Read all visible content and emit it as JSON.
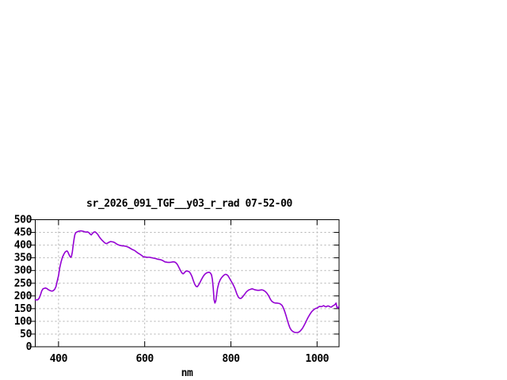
{
  "chart_data": {
    "type": "line",
    "title": "sr_2026_091_TGF__y03_r_rad 07-52-00",
    "xlabel": "nm",
    "ylabel": "",
    "xlim": [
      346,
      1051
    ],
    "ylim": [
      0,
      500
    ],
    "xticks": [
      400,
      600,
      800,
      1000
    ],
    "yticks": [
      0,
      50,
      100,
      150,
      200,
      250,
      300,
      350,
      400,
      450,
      500
    ],
    "grid": true,
    "legend": false,
    "line_color": "#9400d3",
    "grid_color": "#b0b0b0",
    "border_color": "#000000",
    "text_color": "#000000",
    "background_color": "#ffffff",
    "series": [
      {
        "name": "sr_2026_091_TGF__y03_r_rad",
        "x": [
          346,
          349,
          352,
          355,
          358,
          361,
          364,
          367,
          370,
          373,
          376,
          379,
          382,
          385,
          388,
          391,
          394,
          397,
          400,
          403,
          406,
          409,
          412,
          415,
          418,
          420,
          422,
          424,
          426,
          428,
          430,
          432,
          434,
          436,
          438,
          440,
          443,
          446,
          449,
          452,
          455,
          458,
          461,
          464,
          467,
          470,
          473,
          476,
          479,
          482,
          485,
          488,
          491,
          494,
          497,
          500,
          503,
          506,
          509,
          512,
          515,
          518,
          521,
          524,
          527,
          530,
          533,
          536,
          539,
          542,
          545,
          548,
          551,
          554,
          557,
          560,
          563,
          566,
          569,
          572,
          575,
          578,
          581,
          584,
          587,
          590,
          593,
          596,
          599,
          602,
          605,
          608,
          611,
          614,
          617,
          620,
          623,
          626,
          629,
          632,
          635,
          638,
          641,
          644,
          647,
          650,
          653,
          656,
          659,
          662,
          665,
          668,
          671,
          674,
          677,
          680,
          683,
          686,
          689,
          692,
          695,
          698,
          701,
          704,
          707,
          710,
          713,
          716,
          719,
          722,
          725,
          728,
          731,
          734,
          737,
          740,
          743,
          746,
          749,
          752,
          755,
          757,
          759,
          761,
          763,
          765,
          767,
          769,
          772,
          775,
          778,
          781,
          784,
          787,
          790,
          793,
          796,
          799,
          802,
          805,
          808,
          811,
          814,
          817,
          820,
          823,
          826,
          829,
          832,
          835,
          838,
          841,
          844,
          847,
          850,
          853,
          856,
          859,
          862,
          865,
          868,
          871,
          874,
          877,
          880,
          883,
          886,
          889,
          892,
          895,
          898,
          901,
          904,
          907,
          910,
          913,
          916,
          919,
          922,
          925,
          928,
          931,
          934,
          937,
          940,
          943,
          946,
          949,
          952,
          955,
          958,
          961,
          964,
          967,
          970,
          973,
          976,
          979,
          982,
          985,
          988,
          991,
          994,
          997,
          1000,
          1003,
          1006,
          1009,
          1012,
          1015,
          1018,
          1021,
          1024,
          1027,
          1030,
          1033,
          1036,
          1039,
          1042,
          1044,
          1046,
          1048,
          1050
        ],
        "y": [
          185,
          184,
          185,
          191,
          203,
          220,
          228,
          230,
          231,
          229,
          225,
          222,
          220,
          219,
          221,
          226,
          236,
          258,
          280,
          312,
          334,
          352,
          363,
          372,
          376,
          377,
          372,
          364,
          357,
          352,
          355,
          373,
          400,
          424,
          441,
          449,
          452,
          454,
          455,
          456,
          455,
          454,
          452,
          451,
          452,
          450,
          444,
          440,
          446,
          451,
          452,
          448,
          442,
          434,
          427,
          421,
          416,
          411,
          407,
          406,
          409,
          412,
          414,
          413,
          412,
          410,
          407,
          403,
          401,
          399,
          398,
          397,
          397,
          396,
          395,
          393,
          391,
          388,
          385,
          382,
          380,
          377,
          373,
          369,
          366,
          363,
          359,
          355,
          353,
          353,
          352,
          352,
          352,
          351,
          350,
          349,
          348,
          347,
          345,
          344,
          343,
          342,
          340,
          337,
          334,
          333,
          332,
          332,
          332,
          333,
          334,
          334,
          332,
          328,
          320,
          310,
          300,
          291,
          287,
          291,
          297,
          298,
          297,
          294,
          286,
          275,
          260,
          246,
          238,
          236,
          243,
          252,
          262,
          272,
          280,
          286,
          290,
          292,
          293,
          291,
          283,
          265,
          230,
          185,
          172,
          180,
          205,
          230,
          250,
          263,
          271,
          277,
          282,
          285,
          284,
          280,
          272,
          263,
          254,
          245,
          235,
          222,
          207,
          196,
          191,
          190,
          194,
          200,
          207,
          214,
          219,
          223,
          225,
          227,
          228,
          226,
          224,
          223,
          222,
          222,
          223,
          224,
          223,
          221,
          217,
          212,
          205,
          196,
          186,
          179,
          175,
          173,
          172,
          172,
          171,
          170,
          167,
          162,
          152,
          138,
          122,
          105,
          88,
          74,
          66,
          61,
          58,
          56,
          56,
          56,
          58,
          62,
          68,
          75,
          84,
          94,
          105,
          115,
          124,
          132,
          139,
          144,
          148,
          151,
          152,
          156,
          159,
          158,
          159,
          162,
          159,
          157,
          160,
          160,
          157,
          156,
          160,
          163,
          167,
          172,
          155,
          152,
          158
        ]
      }
    ]
  }
}
